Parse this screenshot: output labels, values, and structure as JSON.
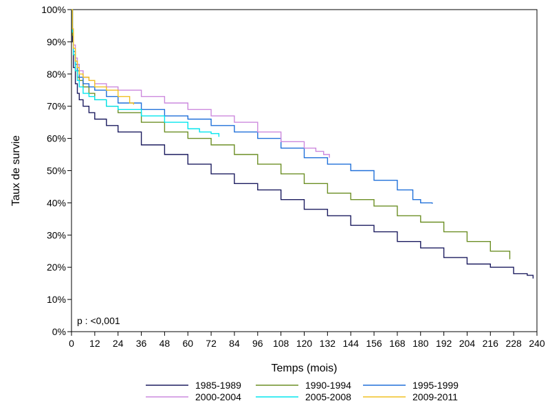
{
  "chart_data": {
    "type": "line",
    "title": "",
    "xlabel": "Temps (mois)",
    "ylabel": "Taux de survie",
    "xlim": [
      0,
      240
    ],
    "ylim": [
      0,
      100
    ],
    "x_ticks": [
      0,
      12,
      24,
      36,
      48,
      60,
      72,
      84,
      96,
      108,
      120,
      132,
      144,
      156,
      168,
      180,
      192,
      204,
      216,
      228,
      240
    ],
    "y_ticks": [
      0,
      10,
      20,
      30,
      40,
      50,
      60,
      70,
      80,
      90,
      100
    ],
    "y_tick_labels": [
      "0%",
      "10%",
      "20%",
      "30%",
      "40%",
      "50%",
      "60%",
      "70%",
      "80%",
      "90%",
      "100%"
    ],
    "grid": false,
    "legend_position": "bottom",
    "annotation": "p : <0,001",
    "series": [
      {
        "name": "1985-1989",
        "color": "#1a1a5e",
        "x": [
          0,
          0.5,
          1,
          2,
          3,
          4,
          6,
          9,
          12,
          18,
          24,
          36,
          48,
          60,
          72,
          84,
          96,
          108,
          120,
          132,
          144,
          156,
          168,
          180,
          192,
          204,
          216,
          228,
          235,
          238
        ],
        "y": [
          100,
          90,
          82,
          77,
          74,
          72,
          70,
          68,
          66,
          64,
          62,
          58,
          55,
          52,
          49,
          46,
          44,
          41,
          38,
          36,
          33,
          31,
          28,
          26,
          23,
          21,
          20,
          18,
          17.5,
          16.5
        ]
      },
      {
        "name": "1990-1994",
        "color": "#6b8e23",
        "x": [
          0,
          0.5,
          1,
          2,
          3,
          4,
          6,
          9,
          12,
          18,
          24,
          36,
          48,
          60,
          72,
          84,
          96,
          108,
          120,
          132,
          144,
          156,
          168,
          180,
          192,
          204,
          216,
          226
        ],
        "y": [
          100,
          92,
          86,
          81,
          79,
          78,
          76,
          74,
          72,
          70,
          68,
          65,
          62,
          60,
          58,
          55,
          52,
          49,
          46,
          43,
          41,
          39,
          36,
          34,
          31,
          28,
          25,
          22.5
        ]
      },
      {
        "name": "1995-1999",
        "color": "#1e6fd9",
        "x": [
          0,
          0.5,
          1,
          2,
          3,
          4,
          6,
          9,
          12,
          18,
          24,
          36,
          48,
          60,
          72,
          84,
          96,
          108,
          120,
          132,
          144,
          156,
          168,
          176,
          180,
          182,
          186
        ],
        "y": [
          100,
          93,
          87,
          83,
          81,
          79,
          77,
          76,
          75,
          73,
          71,
          69,
          67,
          66,
          64,
          62,
          60,
          57,
          54,
          52,
          50,
          47,
          44,
          41,
          40,
          40,
          39.7
        ]
      },
      {
        "name": "2000-2004",
        "color": "#cc88dd",
        "x": [
          0,
          0.5,
          1,
          2,
          3,
          4,
          6,
          9,
          12,
          18,
          24,
          36,
          48,
          60,
          72,
          84,
          96,
          108,
          120,
          126,
          130,
          133
        ],
        "y": [
          100,
          94,
          89,
          85,
          83,
          81,
          79,
          78,
          77,
          76,
          75,
          73,
          71,
          69,
          67,
          65,
          62,
          59,
          57,
          56,
          55,
          54
        ]
      },
      {
        "name": "2005-2008",
        "color": "#00e5ee",
        "x": [
          0,
          0.5,
          1,
          2,
          3,
          4,
          6,
          9,
          12,
          18,
          24,
          36,
          48,
          60,
          66,
          72,
          76
        ],
        "y": [
          100,
          93,
          86,
          81,
          78,
          76,
          74,
          73,
          72,
          70,
          69,
          67,
          65,
          63,
          62,
          61.5,
          60.5
        ]
      },
      {
        "name": "2009-2011",
        "color": "#f0c020",
        "x": [
          0,
          0.5,
          1,
          2,
          3,
          4,
          6,
          9,
          12,
          18,
          24,
          30,
          32
        ],
        "y": [
          100,
          94,
          88,
          84,
          82,
          80,
          79,
          78,
          76,
          75,
          73,
          71,
          70.5
        ]
      }
    ]
  }
}
